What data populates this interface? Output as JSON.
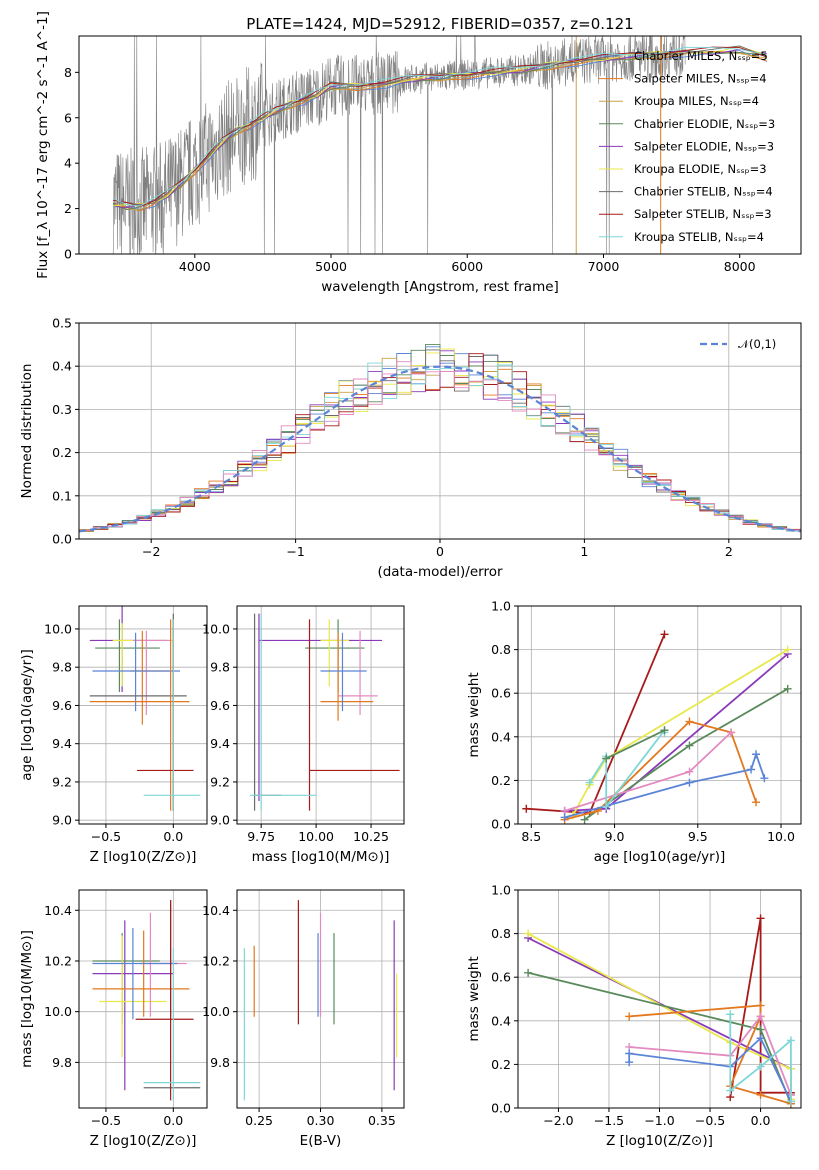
{
  "figure_title": "PLATE=1424, MJD=52912, FIBERID=0357, z=0.121",
  "colors": {
    "Chabrier MILES": "#5b84d6",
    "Salpeter MILES": "#e3781f",
    "Kroupa MILES": "#c8a24a",
    "Chabrier ELODIE": "#5a8a5c",
    "Salpeter ELODIE": "#8a3ab9",
    "Kroupa ELODIE": "#e8e84a",
    "Chabrier STELIB": "#6b6b6b",
    "Salpeter STELIB": "#a81a1a",
    "Kroupa STELIB": "#7fd6d6",
    "pink": "#e38ac0",
    "data": "#7f7f7f"
  },
  "chart_data": [
    {
      "type": "line",
      "id": "spectrum",
      "title": "PLATE=1424, MJD=52912, FIBERID=0357, z=0.121",
      "xlabel": "wavelength [Angstrom, rest frame]",
      "ylabel": "Flux [f_λ 10^-17 erg cm^-2 s^-1 A^-1]",
      "xlim": [
        3150,
        8450
      ],
      "ylim": [
        0,
        9.6
      ],
      "xticks": [
        "4000",
        "5000",
        "6000",
        "7000",
        "8000"
      ],
      "yticks": [
        "0",
        "2",
        "4",
        "6",
        "8"
      ],
      "grid": false,
      "legend_position": "top-right",
      "legend": [
        "Chabrier MILES, N_SSP=5",
        "Salpeter MILES, N_SSP=4",
        "Kroupa MILES, N_SSP=4",
        "Chabrier ELODIE, N_SSP=3",
        "Salpeter ELODIE, N_SSP=3",
        "Kroupa ELODIE, N_SSP=3",
        "Chabrier STELIB, N_SSP=4",
        "Salpeter STELIB, N_SSP=3",
        "Kroupa STELIB, N_SSP=4"
      ],
      "legend_colors": [
        "#5b84d6",
        "#e3781f",
        "#c8a24a",
        "#5a8a5c",
        "#8a3ab9",
        "#e8e84a",
        "#6b6b6b",
        "#a81a1a",
        "#7fd6d6"
      ],
      "model_wavelength": [
        3400,
        3500,
        3600,
        3700,
        3800,
        3900,
        4000,
        4100,
        4200,
        4300,
        4400,
        4500,
        4600,
        4700,
        4800,
        4900,
        5000,
        5200,
        5400,
        5600,
        5800,
        6000,
        6200,
        6400,
        6600,
        6800,
        7000,
        7200,
        7400,
        7600,
        7800,
        8000,
        8200
      ],
      "model_flux": [
        2.2,
        2.1,
        2.1,
        2.3,
        2.6,
        3.1,
        3.7,
        4.3,
        4.9,
        5.4,
        5.7,
        6.0,
        6.3,
        6.6,
        6.8,
        7.0,
        7.4,
        7.4,
        7.5,
        7.7,
        7.8,
        7.9,
        8.0,
        8.1,
        8.3,
        8.5,
        8.6,
        8.7,
        8.8,
        8.9,
        8.9,
        9.0,
        8.7
      ]
    },
    {
      "type": "line",
      "id": "residuals",
      "xlabel": "(data-model)/error",
      "ylabel": "Normed distribution",
      "xlim": [
        -2.5,
        2.5
      ],
      "ylim": [
        0,
        0.5
      ],
      "xticks": [
        "−2",
        "−1",
        "0",
        "1",
        "2"
      ],
      "yticks": [
        "0.0",
        "0.1",
        "0.2",
        "0.3",
        "0.4",
        "0.5"
      ],
      "grid": true,
      "legend_position": "top-right",
      "legend": [
        "𝒩(0,1)"
      ],
      "series": [
        {
          "name": "𝒩(0,1)",
          "mu": 0,
          "sigma": 1
        }
      ]
    },
    {
      "type": "scatter",
      "id": "age-vs-Z",
      "xlabel": "Z [log10(Z/Z⊙)]",
      "ylabel": "age  [log10(age/yr)]",
      "xlim": [
        -0.7,
        0.25
      ],
      "ylim": [
        8.98,
        10.12
      ],
      "xticks": [
        "−0.5",
        "0.0"
      ],
      "yticks": [
        "9.0",
        "9.2",
        "9.4",
        "9.6",
        "9.8",
        "10.0"
      ],
      "grid": true,
      "crosses": [
        {
          "x": -0.62,
          "x2": -0.05,
          "y": 9.94,
          "y1": 9.67,
          "y2": 10.12,
          "xc": -0.38,
          "color": "#8a3ab9"
        },
        {
          "x": -0.58,
          "x2": -0.1,
          "y": 9.9,
          "y1": 9.67,
          "y2": 10.05,
          "xc": -0.4,
          "color": "#5a8a5c"
        },
        {
          "x": -0.45,
          "x2": 0.0,
          "y": 9.94,
          "y1": 9.7,
          "y2": 10.03,
          "xc": -0.38,
          "color": "#e8e84a"
        },
        {
          "x": -0.3,
          "x2": -0.02,
          "y": 9.94,
          "y1": 9.55,
          "y2": 9.99,
          "xc": -0.2,
          "color": "#e38ac0"
        },
        {
          "x": -0.32,
          "x2": -0.03,
          "y": 9.78,
          "y1": 9.5,
          "y2": 9.99,
          "xc": -0.23,
          "color": "#e3781f"
        },
        {
          "x": -0.6,
          "x2": 0.05,
          "y": 9.78,
          "y1": 9.57,
          "y2": 9.98,
          "xc": -0.28,
          "color": "#5b84d6"
        },
        {
          "x": -0.62,
          "x2": 0.1,
          "y": 9.65,
          "y1": 9.05,
          "y2": 10.08,
          "xc": 0.0,
          "color": "#6b6b6b"
        },
        {
          "x": -0.62,
          "x2": 0.12,
          "y": 9.62,
          "y1": 9.05,
          "y2": 10.05,
          "xc": -0.02,
          "color": "#e3781f"
        },
        {
          "x": -0.27,
          "x2": 0.15,
          "y": 9.26,
          "y1": 9.05,
          "y2": 10.05,
          "xc": 0.0,
          "color": "#a81a1a"
        },
        {
          "x": -0.22,
          "x2": 0.2,
          "y": 9.13,
          "y1": 9.05,
          "y2": 10.05,
          "xc": 0.0,
          "color": "#7fd6d6"
        }
      ]
    },
    {
      "type": "scatter",
      "id": "age-vs-mass",
      "xlabel": "mass [log10(M/M⊙)]",
      "xlim": [
        9.64,
        10.4
      ],
      "ylim": [
        8.98,
        10.12
      ],
      "xticks": [
        "9.75",
        "10.00",
        "10.25"
      ],
      "yticks": [
        "9.0",
        "9.2",
        "9.4",
        "9.6",
        "9.8",
        "10.0"
      ],
      "grid": true,
      "crosses": [
        {
          "x": 9.74,
          "x2": 10.3,
          "y": 9.94,
          "y1": 9.1,
          "y2": 10.08,
          "xc": 9.74,
          "color": "#8a3ab9"
        },
        {
          "x": 9.95,
          "x2": 10.22,
          "y": 9.9,
          "y1": 9.67,
          "y2": 10.05,
          "xc": 10.1,
          "color": "#5a8a5c"
        },
        {
          "x": 10.02,
          "x2": 10.15,
          "y": 9.94,
          "y1": 9.7,
          "y2": 10.05,
          "xc": 10.06,
          "color": "#e8e84a"
        },
        {
          "x": 10.1,
          "x2": 10.28,
          "y": 9.65,
          "y1": 9.55,
          "y2": 9.99,
          "xc": 10.2,
          "color": "#e38ac0"
        },
        {
          "x": 10.02,
          "x2": 10.26,
          "y": 9.62,
          "y1": 9.52,
          "y2": 9.98,
          "xc": 10.1,
          "color": "#e3781f"
        },
        {
          "x": 10.02,
          "x2": 10.23,
          "y": 9.78,
          "y1": 9.57,
          "y2": 9.98,
          "xc": 10.12,
          "color": "#5b84d6"
        },
        {
          "x": 9.72,
          "x2": 9.84,
          "y": 9.13,
          "y1": 9.05,
          "y2": 10.08,
          "xc": 9.72,
          "color": "#6b6b6b"
        },
        {
          "x": 9.97,
          "x2": 10.38,
          "y": 9.26,
          "y1": 9.05,
          "y2": 10.05,
          "xc": 9.97,
          "color": "#a81a1a"
        },
        {
          "x": 9.7,
          "x2": 10.0,
          "y": 9.13,
          "y1": 9.05,
          "y2": 10.08,
          "xc": 9.75,
          "color": "#7fd6d6"
        }
      ]
    },
    {
      "type": "line",
      "id": "massweight-vs-age",
      "xlabel": "age  [log10(age/yr)]",
      "ylabel": "mass weight",
      "xlim": [
        8.42,
        10.12
      ],
      "ylim": [
        0,
        1.0
      ],
      "xticks": [
        "8.5",
        "9.0",
        "9.5",
        "10.0"
      ],
      "yticks": [
        "0.0",
        "0.2",
        "0.4",
        "0.6",
        "0.8",
        "1.0"
      ],
      "grid": true,
      "series": [
        {
          "color": "#a81a1a",
          "x": [
            8.47,
            8.85,
            9.3
          ],
          "y": [
            0.07,
            0.05,
            0.87
          ]
        },
        {
          "color": "#8a3ab9",
          "x": [
            8.7,
            8.95,
            10.04
          ],
          "y": [
            0.06,
            0.07,
            0.78
          ]
        },
        {
          "color": "#e8e84a",
          "x": [
            8.75,
            8.85,
            8.95,
            10.04
          ],
          "y": [
            0.04,
            0.18,
            0.3,
            0.8
          ]
        },
        {
          "color": "#5a8a5c",
          "x": [
            8.82,
            9.45,
            10.04
          ],
          "y": [
            0.02,
            0.36,
            0.62
          ]
        },
        {
          "color": "#e3781f",
          "x": [
            8.7,
            8.9,
            9.45,
            9.7,
            9.85
          ],
          "y": [
            0.02,
            0.06,
            0.47,
            0.42,
            0.1
          ]
        },
        {
          "color": "#e38ac0",
          "x": [
            8.7,
            9.45,
            9.7
          ],
          "y": [
            0.06,
            0.24,
            0.42
          ]
        },
        {
          "color": "#5b84d6",
          "x": [
            8.7,
            9.45,
            9.82,
            9.85,
            9.9
          ],
          "y": [
            0.03,
            0.19,
            0.25,
            0.32,
            0.21
          ]
        },
        {
          "color": "#7fd6d6",
          "x": [
            8.85,
            8.95,
            8.95,
            9.3,
            9.3
          ],
          "y": [
            0.19,
            0.31,
            0.08,
            0.43,
            0.42
          ]
        },
        {
          "color": "#5a8a5c",
          "x": [
            8.95,
            9.3
          ],
          "y": [
            0.3,
            0.43
          ]
        }
      ]
    },
    {
      "type": "scatter",
      "id": "mass-vs-Z",
      "xlabel": "Z [log10(Z/Z⊙)]",
      "ylabel": "mass [log10(M/M⊙)]",
      "xlim": [
        -0.7,
        0.25
      ],
      "ylim": [
        9.62,
        10.48
      ],
      "xticks": [
        "−0.5",
        "0.0"
      ],
      "yticks": [
        "9.8",
        "10.0",
        "10.2",
        "10.4"
      ],
      "grid": true,
      "crosses": [
        {
          "x": -0.6,
          "x2": 0.0,
          "y": 10.15,
          "y1": 9.69,
          "y2": 10.36,
          "xc": -0.36,
          "color": "#8a3ab9"
        },
        {
          "x": -0.6,
          "x2": -0.1,
          "y": 10.2,
          "y1": 9.95,
          "y2": 10.31,
          "xc": -0.38,
          "color": "#5a8a5c"
        },
        {
          "x": -0.55,
          "x2": -0.05,
          "y": 10.04,
          "y1": 9.82,
          "y2": 10.3,
          "xc": -0.38,
          "color": "#e8e84a"
        },
        {
          "x": -0.25,
          "x2": 0.1,
          "y": 10.19,
          "y1": 9.98,
          "y2": 10.39,
          "xc": -0.17,
          "color": "#e38ac0"
        },
        {
          "x": -0.6,
          "x2": 0.12,
          "y": 10.09,
          "y1": 9.98,
          "y2": 10.32,
          "xc": -0.22,
          "color": "#e3781f"
        },
        {
          "x": -0.6,
          "x2": 0.03,
          "y": 10.19,
          "y1": 9.97,
          "y2": 10.33,
          "xc": -0.3,
          "color": "#5b84d6"
        },
        {
          "x": -0.22,
          "x2": 0.2,
          "y": 9.7,
          "y1": 9.98,
          "y2": 10.44,
          "xc": -0.02,
          "color": "#6b6b6b"
        },
        {
          "x": -0.28,
          "x2": 0.15,
          "y": 9.97,
          "y1": 9.65,
          "y2": 10.44,
          "xc": -0.02,
          "color": "#a81a1a"
        },
        {
          "x": -0.22,
          "x2": 0.2,
          "y": 9.72,
          "y1": 9.65,
          "y2": 10.25,
          "xc": 0.0,
          "color": "#7fd6d6"
        }
      ]
    },
    {
      "type": "scatter",
      "id": "mass-vs-EBV",
      "xlabel": "E(B-V)",
      "xlim": [
        0.232,
        0.368
      ],
      "ylim": [
        9.62,
        10.48
      ],
      "xticks": [
        "0.25",
        "0.30",
        "0.35"
      ],
      "yticks": [
        "9.8",
        "10.0",
        "10.2",
        "10.4"
      ],
      "grid": true,
      "vlines": [
        {
          "x": 0.238,
          "y1": 9.65,
          "y2": 10.25,
          "color": "#7fd6d6"
        },
        {
          "x": 0.246,
          "y1": 9.98,
          "y2": 10.26,
          "color": "#e3781f"
        },
        {
          "x": 0.282,
          "y1": 9.95,
          "y2": 10.44,
          "color": "#a81a1a"
        },
        {
          "x": 0.298,
          "y1": 9.98,
          "y2": 10.31,
          "color": "#5b84d6"
        },
        {
          "x": 0.3,
          "y1": 9.98,
          "y2": 10.39,
          "color": "#e38ac0"
        },
        {
          "x": 0.311,
          "y1": 9.95,
          "y2": 10.31,
          "color": "#5a8a5c"
        },
        {
          "x": 0.36,
          "y1": 9.69,
          "y2": 10.36,
          "color": "#8a3ab9"
        },
        {
          "x": 0.362,
          "y1": 9.82,
          "y2": 10.15,
          "color": "#e8e84a"
        }
      ]
    },
    {
      "type": "line",
      "id": "massweight-vs-Z",
      "xlabel": "Z [log10(Z/Z⊙)]",
      "ylabel": "mass weight",
      "xlim": [
        -2.4,
        0.4
      ],
      "ylim": [
        0,
        1.0
      ],
      "xticks": [
        "−2.0",
        "−1.5",
        "−1.0",
        "−0.5",
        "0.0"
      ],
      "yticks": [
        "0.0",
        "0.2",
        "0.4",
        "0.6",
        "0.8",
        "1.0"
      ],
      "grid": true,
      "series": [
        {
          "color": "#a81a1a",
          "x": [
            -0.3,
            0.0,
            0.0,
            0.3
          ],
          "y": [
            0.05,
            0.87,
            0.07,
            0.07
          ]
        },
        {
          "color": "#8a3ab9",
          "x": [
            -2.3,
            0.3,
            0.3
          ],
          "y": [
            0.78,
            0.18,
            0.06
          ]
        },
        {
          "color": "#e8e84a",
          "x": [
            -2.3,
            -0.3,
            0.3,
            0.3
          ],
          "y": [
            0.8,
            0.3,
            0.18,
            0.04
          ]
        },
        {
          "color": "#5a8a5c",
          "x": [
            -2.3,
            0.0,
            0.3
          ],
          "y": [
            0.62,
            0.36,
            0.02
          ]
        },
        {
          "color": "#e3781f",
          "x": [
            -1.3,
            0.0,
            0.0,
            -0.3,
            0.0,
            0.3
          ],
          "y": [
            0.42,
            0.47,
            0.42,
            0.1,
            0.06,
            0.02
          ]
        },
        {
          "color": "#e38ac0",
          "x": [
            -1.3,
            -0.3,
            0.0,
            0.3
          ],
          "y": [
            0.28,
            0.24,
            0.42,
            0.06
          ]
        },
        {
          "color": "#5b84d6",
          "x": [
            -1.3,
            -1.3,
            -0.3,
            0.0,
            0.3
          ],
          "y": [
            0.21,
            0.25,
            0.19,
            0.32,
            0.03
          ]
        },
        {
          "color": "#7fd6d6",
          "x": [
            -0.3,
            -0.3,
            0.0,
            0.3,
            0.3
          ],
          "y": [
            0.43,
            0.08,
            0.19,
            0.31,
            0.03
          ]
        }
      ]
    }
  ]
}
